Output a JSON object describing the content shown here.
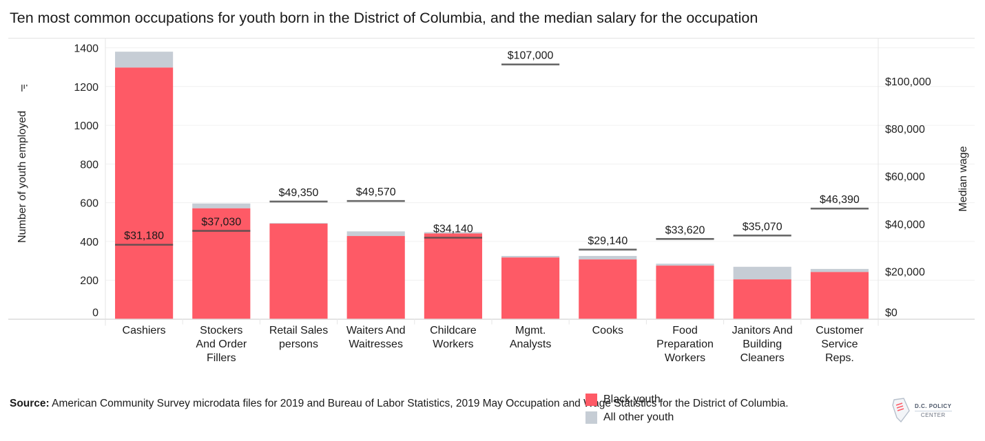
{
  "title": "Ten most common occupations for youth born in the District of Columbia, and the median salary for the occupation",
  "footer": {
    "source_label": "Source:",
    "source_text": " American Community Survey microdata files for 2019 and Bureau of Labor Statistics, 2019 May Occupation and Wage Statistics for the District of Columbia.",
    "logo_line1": "D.C. POLICY",
    "logo_line2": "CENTER"
  },
  "colors": {
    "black_youth": "#fe5a66",
    "all_other_youth": "#c6cdd5",
    "wage_line": "#4d4d4d"
  },
  "chart_data": {
    "type": "bar",
    "stacked": true,
    "title": "Ten most common occupations for youth born in the District of Columbia, and the median salary for the occupation",
    "xlabel": "",
    "ylabel": "Number of youth employed",
    "y2label": "Median wage",
    "ylim": [
      0,
      1400
    ],
    "y2lim": [
      0,
      114000
    ],
    "yticks": [
      "0",
      "200",
      "400",
      "600",
      "800",
      "1000",
      "1200",
      "1400"
    ],
    "ytick_values": [
      0,
      200,
      400,
      600,
      800,
      1000,
      1200,
      1400
    ],
    "y2ticks": [
      "$0",
      "$20,000",
      "$40,000",
      "$60,000",
      "$80,000",
      "$100,000"
    ],
    "y2tick_values": [
      0,
      20000,
      40000,
      60000,
      80000,
      100000
    ],
    "grid": true,
    "legend_position": "bottom-center",
    "categories": [
      [
        "Cashiers"
      ],
      [
        "Stockers",
        "And Order",
        "Fillers"
      ],
      [
        "Retail Sales",
        "persons"
      ],
      [
        "Waiters And",
        "Waitresses"
      ],
      [
        "Childcare",
        "Workers"
      ],
      [
        "Mgmt.",
        "Analysts"
      ],
      [
        "Cooks"
      ],
      [
        "Food",
        "Preparation",
        "Workers"
      ],
      [
        "Janitors And",
        "Building",
        "Cleaners"
      ],
      [
        "Customer",
        "Service",
        "Reps."
      ]
    ],
    "series": [
      {
        "name": "Black youth",
        "values": [
          1298,
          571,
          492,
          428,
          441,
          317,
          307,
          275,
          204,
          242
        ]
      },
      {
        "name": "All other youth",
        "values": [
          82,
          25,
          3,
          24,
          7,
          8,
          18,
          10,
          65,
          16
        ]
      }
    ],
    "median_wage": {
      "name": "Median wage",
      "values": [
        31180,
        37030,
        49350,
        49570,
        34140,
        107000,
        29140,
        33620,
        35070,
        46390
      ],
      "labels": [
        "$31,180",
        "$37,030",
        "$49,350",
        "$49,570",
        "$34,140",
        "$107,000",
        "$29,140",
        "$33,620",
        "$35,070",
        "$46,390"
      ]
    }
  }
}
